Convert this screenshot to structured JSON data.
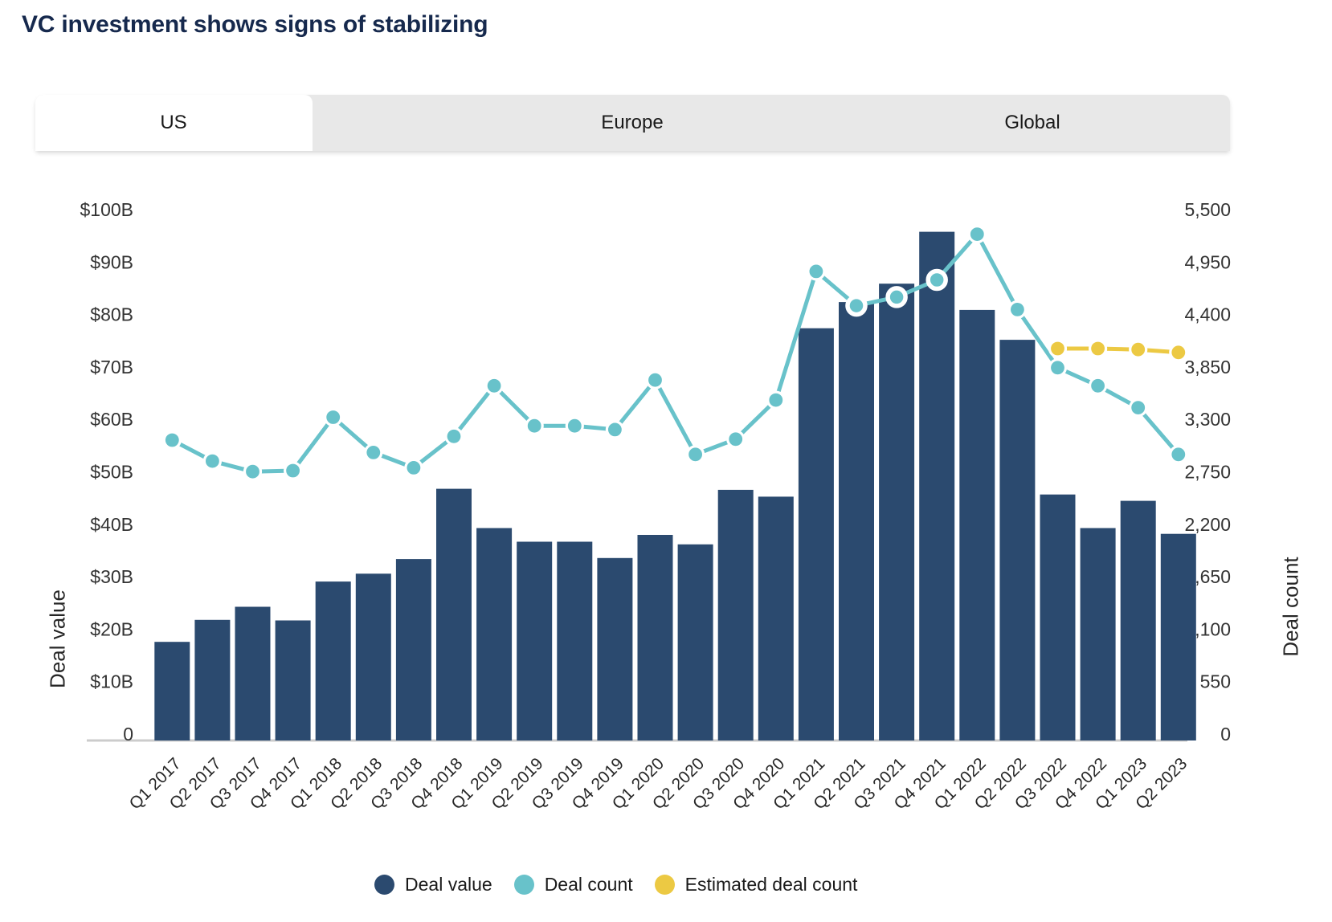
{
  "title": "VC investment shows signs of stabilizing",
  "tabs": [
    {
      "label": "US",
      "active": true
    },
    {
      "label": "Europe",
      "active": false
    },
    {
      "label": "Global",
      "active": false
    }
  ],
  "legend": [
    {
      "label": "Deal value",
      "color": "#2b4a6f"
    },
    {
      "label": "Deal count",
      "color": "#68c2ca"
    },
    {
      "label": "Estimated deal count",
      "color": "#ecc943"
    }
  ],
  "colors": {
    "bar": "#2b4a6f",
    "deal_count_line": "#68c2ca",
    "estimated_line": "#ecc943",
    "axis_line": "#cccccc",
    "tick_text": "#333333",
    "title_text": "#16294d",
    "tab_background": "#e8e8e8"
  },
  "chart_data": {
    "type": "bar",
    "subtype": "dual-axis combo (bar + line)",
    "title": "VC investment shows signs of stabilizing",
    "categories": [
      "Q1 2017",
      "Q2 2017",
      "Q3 2017",
      "Q4 2017",
      "Q1 2018",
      "Q2 2018",
      "Q3 2018",
      "Q4 2018",
      "Q1 2019",
      "Q2 2019",
      "Q3 2019",
      "Q4 2019",
      "Q1 2020",
      "Q2 2020",
      "Q3 2020",
      "Q4 2020",
      "Q1 2021",
      "Q2 2021",
      "Q3 2021",
      "Q4 2021",
      "Q1 2022",
      "Q2 2022",
      "Q3 2022",
      "Q4 2022",
      "Q1 2023",
      "Q2 2023"
    ],
    "series": [
      {
        "name": "Deal value",
        "type": "bar",
        "axis": "left",
        "unit": "$B",
        "color": "#2b4a6f",
        "values": [
          18.8,
          23.0,
          25.5,
          22.9,
          30.3,
          31.8,
          34.6,
          48.0,
          40.5,
          37.9,
          37.9,
          34.8,
          39.2,
          37.4,
          47.8,
          46.5,
          78.6,
          83.6,
          87.1,
          97.0,
          82.1,
          76.4,
          46.9,
          40.5,
          45.7,
          39.4
        ]
      },
      {
        "name": "Deal count",
        "type": "line",
        "axis": "right",
        "color": "#68c2ca",
        "values": [
          3150,
          2930,
          2820,
          2830,
          3390,
          3020,
          2860,
          3190,
          3720,
          3300,
          3300,
          3260,
          3780,
          3000,
          3160,
          3570,
          4920,
          4560,
          4650,
          4830,
          5310,
          4520,
          3910,
          3720,
          3490,
          3000
        ],
        "ring_marker_categories": [
          "Q2 2021",
          "Q3 2021",
          "Q4 2021"
        ]
      },
      {
        "name": "Estimated deal count",
        "type": "line",
        "axis": "right",
        "color": "#ecc943",
        "values": [
          null,
          null,
          null,
          null,
          null,
          null,
          null,
          null,
          null,
          null,
          null,
          null,
          null,
          null,
          null,
          null,
          null,
          null,
          null,
          null,
          null,
          null,
          4110,
          4110,
          4100,
          4070
        ]
      }
    ],
    "y_left": {
      "label": "Deal value",
      "range": [
        0,
        100
      ],
      "tick_values": [
        0,
        10,
        20,
        30,
        40,
        50,
        60,
        70,
        80,
        90,
        100
      ],
      "tick_labels": [
        "0",
        "$10B",
        "$20B",
        "$30B",
        "$40B",
        "$50B",
        "$60B",
        "$70B",
        "$80B",
        "$90B",
        "$100B"
      ]
    },
    "y_right": {
      "label": "Deal count",
      "range": [
        0,
        5500
      ],
      "tick_values": [
        0,
        550,
        1100,
        1650,
        2200,
        2750,
        3300,
        3850,
        4400,
        4950,
        5500
      ],
      "tick_labels": [
        "0",
        "550",
        "1,100",
        "1,650",
        "2,200",
        "2,750",
        "3,300",
        "3,850",
        "4,400",
        "4,950",
        "5,500"
      ]
    },
    "x_axis": {
      "tick_rotation_deg": -45
    },
    "grid": false,
    "legend_position": "bottom"
  }
}
